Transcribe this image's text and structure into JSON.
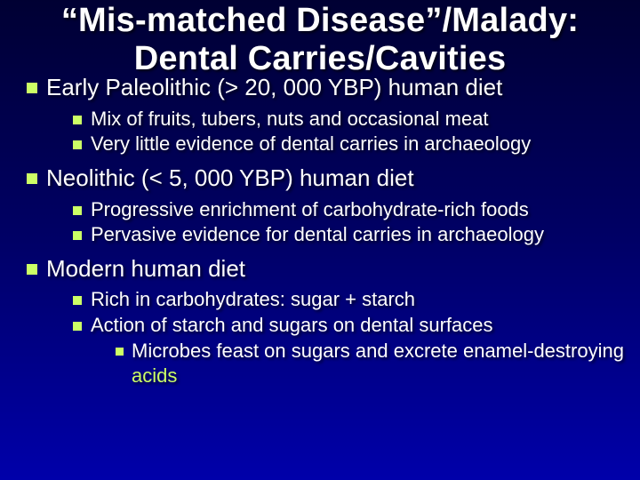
{
  "colors": {
    "bullet": "#ccff66",
    "accent": "#ccff66",
    "text": "#ffffff",
    "bg_top": "#000033",
    "bg_mid": "#000066",
    "bg_bottom": "#0000aa"
  },
  "fontsizes": {
    "title": 38,
    "l1": 26,
    "l2": 22,
    "l3": 22
  },
  "title": "“Mis-matched Disease”/Malady: Dental Carries/Cavities",
  "sections": [
    {
      "label": "Early Paleolithic (> 20, 000 YBP) human diet",
      "items": [
        "Mix of fruits, tubers, nuts and occasional meat",
        "Very little evidence of dental carries in archaeology"
      ]
    },
    {
      "label": "Neolithic (< 5, 000 YBP) human diet",
      "items": [
        "Progressive enrichment of carbohydrate-rich foods",
        "Pervasive evidence for dental carries in archaeology"
      ]
    },
    {
      "label": "Modern human diet",
      "items": [
        "Rich in carbohydrates: sugar + starch",
        "Action of starch and sugars on dental surfaces"
      ],
      "sub3": {
        "parentIndex": 1,
        "items": [
          {
            "prefix": "Microbes feast on sugars and excrete enamel-destroying ",
            "accent": "acids"
          }
        ]
      }
    }
  ]
}
